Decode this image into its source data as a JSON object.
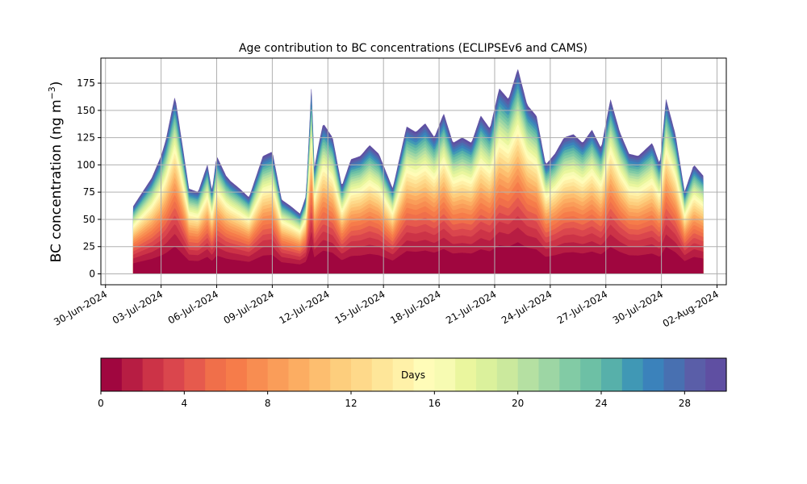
{
  "chart_data": {
    "type": "area",
    "stacked": true,
    "title": "Age contribution to BC concentrations (ECLIPSEv6 and CAMS)",
    "ylabel_main": "BC concentration (ng m",
    "ylabel_sup": "−3",
    "ylabel_close": ")",
    "xlabel": "",
    "ylim": [
      -10,
      198
    ],
    "xlim": [
      "2024-06-29T18:00",
      "2024-08-02T12:00"
    ],
    "grid": true,
    "yticks": [
      0,
      25,
      50,
      75,
      100,
      125,
      150,
      175
    ],
    "xtick_dates": [
      "2024-06-30",
      "2024-07-03",
      "2024-07-06",
      "2024-07-09",
      "2024-07-12",
      "2024-07-15",
      "2024-07-18",
      "2024-07-21",
      "2024-07-24",
      "2024-07-27",
      "2024-07-30",
      "2024-08-02"
    ],
    "xtick_labels": [
      "30-Jun-2024",
      "03-Jul-2024",
      "06-Jul-2024",
      "09-Jul-2024",
      "12-Jul-2024",
      "15-Jul-2024",
      "18-Jul-2024",
      "21-Jul-2024",
      "24-Jul-2024",
      "27-Jul-2024",
      "30-Jul-2024",
      "02-Aug-2024"
    ],
    "total": {
      "dates": [
        "2024-07-01T12:00",
        "2024-07-02T00:00",
        "2024-07-02T12:00",
        "2024-07-03T00:00",
        "2024-07-03T06:00",
        "2024-07-03T18:00",
        "2024-07-04T12:00",
        "2024-07-05T00:00",
        "2024-07-05T12:00",
        "2024-07-05T18:00",
        "2024-07-06T00:00",
        "2024-07-06T12:00",
        "2024-07-06T18:00",
        "2024-07-07T06:00",
        "2024-07-07T18:00",
        "2024-07-08T12:00",
        "2024-07-09T00:00",
        "2024-07-09T12:00",
        "2024-07-10T00:00",
        "2024-07-10T12:00",
        "2024-07-10T20:00",
        "2024-07-11T03:00",
        "2024-07-11T06:00",
        "2024-07-11T12:00",
        "2024-07-11T18:00",
        "2024-07-12T06:00",
        "2024-07-12T18:00",
        "2024-07-13T06:00",
        "2024-07-13T18:00",
        "2024-07-14T06:00",
        "2024-07-14T18:00",
        "2024-07-15T12:00",
        "2024-07-16T06:00",
        "2024-07-16T18:00",
        "2024-07-17T06:00",
        "2024-07-17T18:00",
        "2024-07-18T06:00",
        "2024-07-18T18:00",
        "2024-07-19T06:00",
        "2024-07-19T18:00",
        "2024-07-20T06:00",
        "2024-07-20T18:00",
        "2024-07-21T06:00",
        "2024-07-21T18:00",
        "2024-07-22T06:00",
        "2024-07-22T18:00",
        "2024-07-23T06:00",
        "2024-07-23T18:00",
        "2024-07-24T06:00",
        "2024-07-24T18:00",
        "2024-07-25T06:00",
        "2024-07-25T18:00",
        "2024-07-26T06:00",
        "2024-07-26T18:00",
        "2024-07-27T06:00",
        "2024-07-27T18:00",
        "2024-07-28T06:00",
        "2024-07-28T18:00",
        "2024-07-29T12:00",
        "2024-07-29T22:00",
        "2024-07-30T06:00",
        "2024-07-30T18:00",
        "2024-07-31T06:00",
        "2024-07-31T18:00",
        "2024-08-01T06:00"
      ],
      "values": [
        62,
        75,
        88,
        108,
        122,
        163,
        78,
        75,
        100,
        75,
        108,
        90,
        85,
        78,
        70,
        108,
        112,
        68,
        62,
        55,
        72,
        175,
        95,
        118,
        138,
        125,
        80,
        105,
        108,
        118,
        110,
        78,
        135,
        130,
        138,
        125,
        147,
        120,
        125,
        120,
        145,
        133,
        170,
        160,
        188,
        155,
        145,
        100,
        110,
        125,
        128,
        120,
        132,
        115,
        160,
        130,
        110,
        108,
        120,
        100,
        160,
        128,
        75,
        100,
        90
      ]
    },
    "colorbar": {
      "label": "Days",
      "min": 0,
      "max": 30,
      "ticks": [
        0,
        4,
        8,
        12,
        16,
        20,
        24,
        28
      ],
      "colors": [
        "#a0063f",
        "#b71d43",
        "#cc3347",
        "#da464d",
        "#e65a4d",
        "#f06f4a",
        "#f67c4a",
        "#f88d51",
        "#fa9d59",
        "#fcad62",
        "#fdbe6f",
        "#fdce7d",
        "#fed98a",
        "#fee699",
        "#fff1a8",
        "#fffcb8",
        "#f7fbb2",
        "#eaf69e",
        "#dbf19c",
        "#cbe99d",
        "#b5e0a2",
        "#9dd6a4",
        "#82cba5",
        "#6dc0a5",
        "#57b0aa",
        "#4098b5",
        "#3b82bb",
        "#4870b1",
        "#5a5ea8",
        "#5f4fa2"
      ]
    }
  }
}
